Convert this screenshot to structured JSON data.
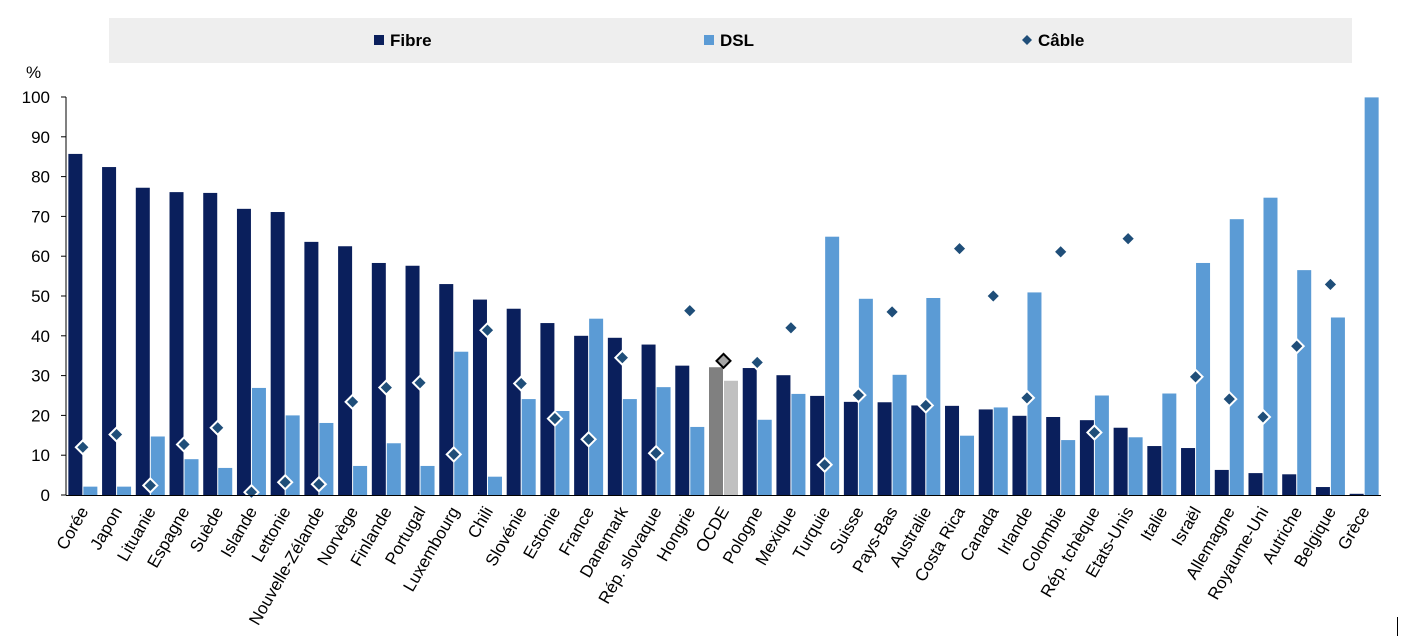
{
  "chart_data": {
    "type": "bar",
    "ylabel": "%",
    "ylim": [
      0,
      100
    ],
    "yticks": [
      0,
      10,
      20,
      30,
      40,
      50,
      60,
      70,
      80,
      90,
      100
    ],
    "grid": false,
    "legend_position": "top",
    "categories": [
      "Corée",
      "Japon",
      "Lituanie",
      "Espagne",
      "Suède",
      "Islande",
      "Lettonie",
      "Nouvelle-Zélande",
      "Norvège",
      "Finlande",
      "Portugal",
      "Luxembourg",
      "Chili",
      "Slovénie",
      "Estonie",
      "France",
      "Danemark",
      "Rép. slovaque",
      "Hongrie",
      "OCDE",
      "Pologne",
      "Mexique",
      "Turquie",
      "Suisse",
      "Pays-Bas",
      "Australie",
      "Costa Rica",
      "Canada",
      "Irlande",
      "Colombie",
      "Rép. tchèque",
      "Etats-Unis",
      "Italie",
      "Israël",
      "Allemagne",
      "Royaume-Uni",
      "Autriche",
      "Belgique",
      "Grèce"
    ],
    "highlight_category": "OCDE",
    "series": [
      {
        "name": "Fibre",
        "kind": "bar",
        "color": "#0a1f5c",
        "highlight_color": "#808080",
        "values": [
          85.7,
          82.4,
          77.2,
          76.1,
          75.9,
          71.9,
          71.1,
          63.6,
          62.5,
          58.3,
          57.6,
          53.0,
          49.1,
          46.8,
          43.2,
          40.0,
          39.5,
          37.8,
          32.5,
          32.1,
          31.9,
          30.1,
          24.9,
          23.4,
          23.3,
          22.5,
          22.4,
          21.5,
          19.9,
          19.6,
          18.8,
          16.9,
          12.3,
          11.8,
          6.3,
          5.5,
          5.2,
          2.0,
          0.3
        ]
      },
      {
        "name": "DSL",
        "kind": "bar",
        "color": "#5b9bd5",
        "highlight_color": "#c0c0c0",
        "values": [
          2.1,
          2.1,
          14.7,
          9.0,
          6.8,
          26.9,
          20.0,
          18.1,
          7.3,
          13.0,
          7.3,
          36.0,
          4.6,
          24.1,
          21.1,
          44.3,
          24.1,
          27.1,
          17.1,
          28.7,
          18.9,
          25.4,
          64.9,
          49.3,
          30.2,
          49.5,
          14.9,
          22.0,
          50.9,
          13.8,
          25.0,
          14.5,
          25.5,
          58.3,
          69.3,
          74.7,
          56.5,
          44.6,
          99.9
        ]
      },
      {
        "name": "Câble",
        "kind": "diamond",
        "color": "#1f4e79",
        "highlight_color": "#a6a6a6",
        "values": [
          12.0,
          15.2,
          2.4,
          12.7,
          16.9,
          0.7,
          3.2,
          2.7,
          23.4,
          27.0,
          28.2,
          10.2,
          41.4,
          28.0,
          19.2,
          14.0,
          34.5,
          10.5,
          46.3,
          33.7,
          33.3,
          42.0,
          7.6,
          25.1,
          46.0,
          22.5,
          61.9,
          50.0,
          24.4,
          61.1,
          15.7,
          64.4,
          null,
          29.7,
          24.1,
          19.6,
          37.4,
          52.9,
          null
        ]
      }
    ]
  }
}
